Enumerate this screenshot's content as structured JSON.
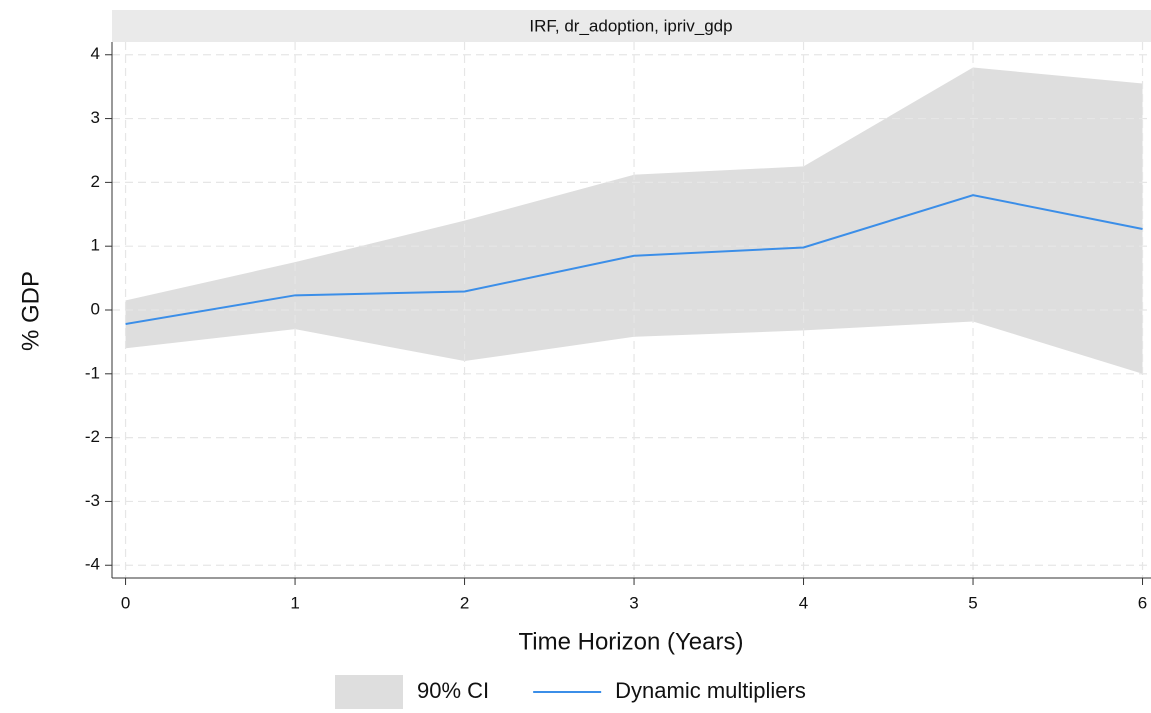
{
  "chart_data": {
    "type": "line",
    "title": "IRF, dr_adoption, ipriv_gdp",
    "x_label": "Time Horizon (Years)",
    "y_label": "% GDP",
    "x": [
      0,
      1,
      2,
      3,
      4,
      5,
      6
    ],
    "series": [
      {
        "name": "90% CI",
        "type": "band",
        "color": "#dedede",
        "lower": [
          -0.6,
          -0.3,
          -0.8,
          -0.42,
          -0.32,
          -0.18,
          -1.0
        ],
        "upper": [
          0.15,
          0.75,
          1.4,
          2.12,
          2.25,
          3.8,
          3.55
        ]
      },
      {
        "name": "Dynamic multipliers",
        "type": "line",
        "color": "#3b8ee8",
        "values": [
          -0.22,
          0.23,
          0.29,
          0.85,
          0.98,
          1.8,
          1.27
        ]
      }
    ],
    "xlim": [
      -0.08,
      6.05
    ],
    "ylim": [
      -4.2,
      4.2
    ],
    "xticks": [
      0,
      1,
      2,
      3,
      4,
      5,
      6
    ],
    "yticks": [
      -4,
      -3,
      -2,
      -1,
      0,
      1,
      2,
      3,
      4
    ],
    "grid": true,
    "legend": "bottom"
  }
}
